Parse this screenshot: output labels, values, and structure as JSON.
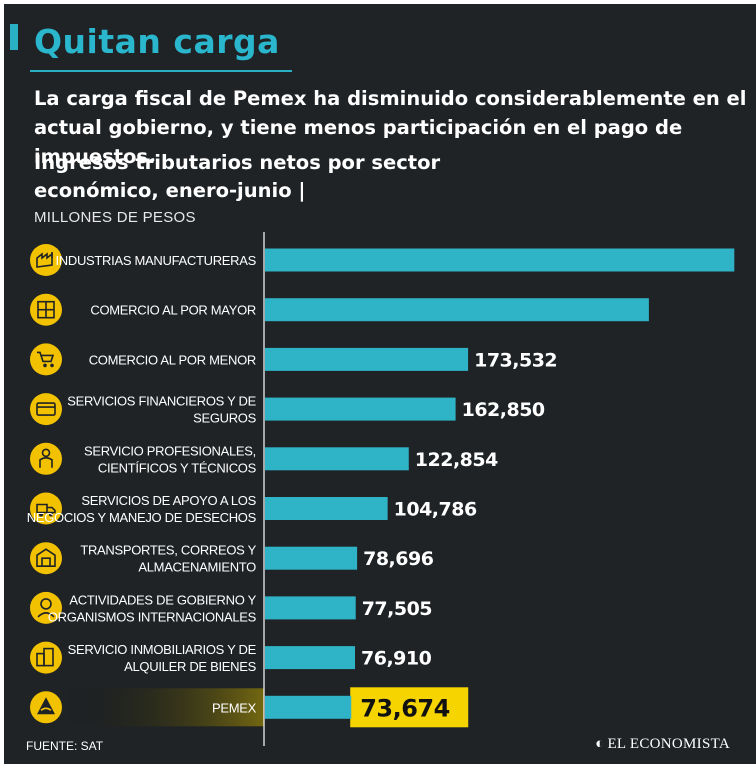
{
  "header": {
    "title": "Quitan carga",
    "subtitle": "La carga fiscal de Pemex ha disminuido considerablemente en el actual gobierno, y tiene  menos participación en el pago de impuestos."
  },
  "chart_data": {
    "type": "bar",
    "orientation": "horizontal",
    "title": "Ingresos tributarios netos por sector económico, enero-junio |",
    "unit": "MILLONES DE PESOS",
    "categories": [
      [
        "INDUSTRIAS MANUFACTURERAS"
      ],
      [
        "COMERCIO AL POR MAYOR"
      ],
      [
        "COMERCIO AL POR MENOR"
      ],
      [
        "SERVICIOS FINANCIEROS Y DE",
        "SEGUROS"
      ],
      [
        "SERVICIO PROFESIONALES,",
        "CIENTÍFICOS Y TÉCNICOS"
      ],
      [
        "SERVICIOS DE APOYO A LOS",
        "NEGOCIOS Y MANEJO DE DESECHOS"
      ],
      [
        "TRANSPORTES, CORREOS Y",
        "ALMACENAMIENTO"
      ],
      [
        "ACTIVIDADES DE GOBIERNO Y",
        "ORGANISMOS INTERNACIONALES"
      ],
      [
        "SERVICIO INMOBILIARIOS Y DE",
        "ALQUILER DE BIENES"
      ],
      [
        "PEMEX"
      ]
    ],
    "values": [
      401000,
      328000,
      173532,
      162850,
      122854,
      104786,
      78696,
      77505,
      76910,
      73674
    ],
    "value_labels": [
      "",
      "",
      "173,532",
      "162,850",
      "122,854",
      "104,786",
      "78,696",
      "77,505",
      "76,910",
      "73,674"
    ],
    "icons": [
      "factory-icon",
      "warehouse-icon",
      "cart-icon",
      "credit-card-icon",
      "professional-icon",
      "recycling-truck-icon",
      "truck-building-icon",
      "government-worker-icon",
      "buildings-icon",
      "pemex-logo-icon"
    ],
    "highlight_index": 9,
    "xlim": [
      0,
      405000
    ],
    "colors": {
      "bar": "#2fb3c6",
      "highlight": "#f5d400",
      "highlight_text": "#111111",
      "text": "#ffffff",
      "icon": "#f2c200"
    }
  },
  "footer": {
    "source": "FUENTE: SAT",
    "brand": "EL ECONOMISTA",
    "brand_mark": "◐"
  }
}
